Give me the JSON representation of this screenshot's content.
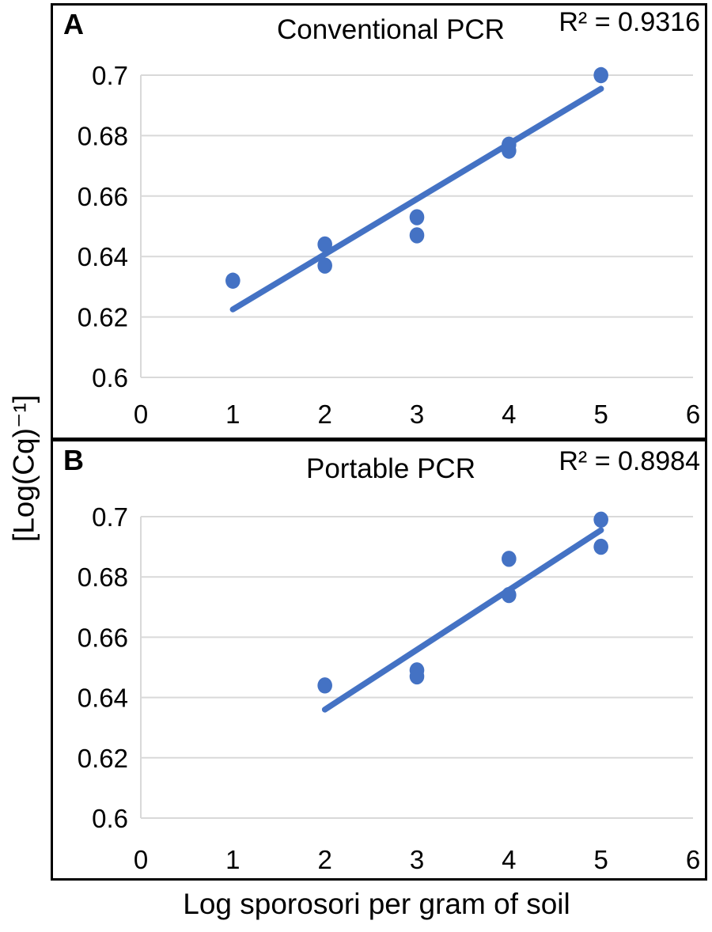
{
  "figure": {
    "y_axis_label": "[Log(Cq)⁻¹]",
    "x_axis_label": "Log sporosori per gram of soil",
    "accent_color": "#4472C4",
    "gridline_color": "#D9D9D9",
    "border_color": "#000000",
    "background_color": "#FFFFFF"
  },
  "chart_data": [
    {
      "type": "scatter",
      "panel_label": "A",
      "title": "Conventional PCR",
      "r2_label": "R² = 0.9316",
      "r_squared": 0.9316,
      "x_ticks": [
        "0",
        "1",
        "2",
        "3",
        "4",
        "5",
        "6"
      ],
      "y_ticks": [
        "0.7",
        "0.68",
        "0.66",
        "0.64",
        "0.62",
        "0.6"
      ],
      "xlim": [
        0,
        6
      ],
      "ylim": [
        0.6,
        0.7
      ],
      "grid": "horizontal",
      "legend": "none",
      "color": "#4472C4",
      "points": [
        [
          1,
          0.632
        ],
        [
          2,
          0.644
        ],
        [
          2,
          0.637
        ],
        [
          3,
          0.653
        ],
        [
          3,
          0.647
        ],
        [
          4,
          0.677
        ],
        [
          4,
          0.675
        ],
        [
          5,
          0.7
        ]
      ],
      "trendline": {
        "x1": 1,
        "y1": 0.6225,
        "x2": 5,
        "y2": 0.6955
      }
    },
    {
      "type": "scatter",
      "panel_label": "B",
      "title": "Portable PCR",
      "r2_label": "R² = 0.8984",
      "r_squared": 0.8984,
      "x_ticks": [
        "0",
        "1",
        "2",
        "3",
        "4",
        "5",
        "6"
      ],
      "y_ticks": [
        "0.7",
        "0.68",
        "0.66",
        "0.64",
        "0.62",
        "0.6"
      ],
      "xlim": [
        0,
        6
      ],
      "ylim": [
        0.6,
        0.7
      ],
      "grid": "horizontal",
      "legend": "none",
      "color": "#4472C4",
      "points": [
        [
          2,
          0.644
        ],
        [
          3,
          0.649
        ],
        [
          3,
          0.647
        ],
        [
          4,
          0.686
        ],
        [
          4,
          0.674
        ],
        [
          5,
          0.699
        ],
        [
          5,
          0.69
        ]
      ],
      "trendline": {
        "x1": 2,
        "y1": 0.636,
        "x2": 5,
        "y2": 0.6955
      }
    }
  ]
}
